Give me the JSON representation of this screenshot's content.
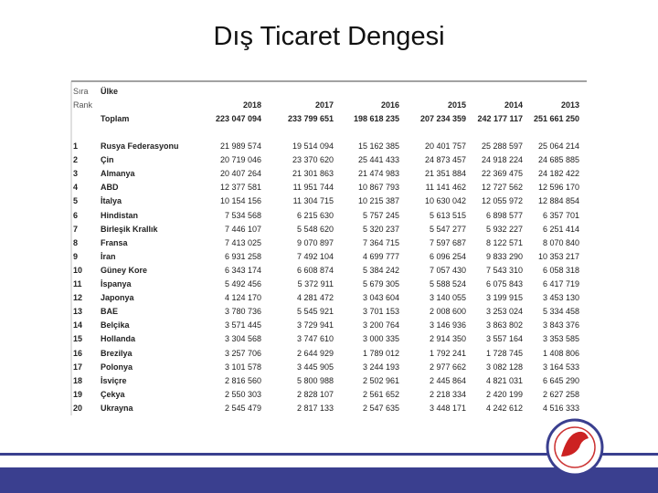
{
  "title": "Dış Ticaret Dengesi",
  "table": {
    "header": {
      "rank_tr": "Sıra",
      "rank_en": "Rank",
      "country": "Ülke",
      "years": [
        2018,
        2017,
        2016,
        2015,
        2014,
        2013
      ]
    },
    "total": {
      "label": "Toplam",
      "values": [
        "223 047 094",
        "233 799 651",
        "198 618 235",
        "207 234 359",
        "242 177 117",
        "251 661 250"
      ]
    },
    "rows": [
      [
        1,
        "Rusya Federasyonu",
        "21 989 574",
        "19 514 094",
        "15 162 385",
        "20 401 757",
        "25 288 597",
        "25 064 214"
      ],
      [
        2,
        "Çin",
        "20 719 046",
        "23 370 620",
        "25 441 433",
        "24 873 457",
        "24 918 224",
        "24 685 885"
      ],
      [
        3,
        "Almanya",
        "20 407 264",
        "21 301 863",
        "21 474 983",
        "21 351 884",
        "22 369 475",
        "24 182 422"
      ],
      [
        4,
        "ABD",
        "12 377 581",
        "11 951 744",
        "10 867 793",
        "11 141 462",
        "12 727 562",
        "12 596 170"
      ],
      [
        5,
        "İtalya",
        "10 154 156",
        "11 304 715",
        "10 215 387",
        "10 630 042",
        "12 055 972",
        "12 884 854"
      ],
      [
        6,
        "Hindistan",
        "7 534 568",
        "6 215 630",
        "5 757 245",
        "5 613 515",
        "6 898 577",
        "6 357 701"
      ],
      [
        7,
        "Birleşik Krallık",
        "7 446 107",
        "5 548 620",
        "5 320 237",
        "5 547 277",
        "5 932 227",
        "6 251 414"
      ],
      [
        8,
        "Fransa",
        "7 413 025",
        "9 070 897",
        "7 364 715",
        "7 597 687",
        "8 122 571",
        "8 070 840"
      ],
      [
        9,
        "İran",
        "6 931 258",
        "7 492 104",
        "4 699 777",
        "6 096 254",
        "9 833 290",
        "10 353 217"
      ],
      [
        10,
        "Güney Kore",
        "6 343 174",
        "6 608 874",
        "5 384 242",
        "7 057 430",
        "7 543 310",
        "6 058 318"
      ],
      [
        11,
        "İspanya",
        "5 492 456",
        "5 372 911",
        "5 679 305",
        "5 588 524",
        "6 075 843",
        "6 417 719"
      ],
      [
        12,
        "Japonya",
        "4 124 170",
        "4 281 472",
        "3 043 604",
        "3 140 055",
        "3 199 915",
        "3 453 130"
      ],
      [
        13,
        "BAE",
        "3 780 736",
        "5 545 921",
        "3 701 153",
        "2 008 600",
        "3 253 024",
        "5 334 458"
      ],
      [
        14,
        "Belçika",
        "3 571 445",
        "3 729 941",
        "3 200 764",
        "3 146 936",
        "3 863 802",
        "3 843 376"
      ],
      [
        15,
        "Hollanda",
        "3 304 568",
        "3 747 610",
        "3 000 335",
        "2 914 350",
        "3 557 164",
        "3 353 585"
      ],
      [
        16,
        "Brezilya",
        "3 257 706",
        "2 644 929",
        "1 789 012",
        "1 792 241",
        "1 728 745",
        "1 408 806"
      ],
      [
        17,
        "Polonya",
        "3 101 578",
        "3 445 905",
        "3 244 193",
        "2 977 662",
        "3 082 128",
        "3 164 533"
      ],
      [
        18,
        "İsviçre",
        "2 816 560",
        "5 800 988",
        "2 502 961",
        "2 445 864",
        "4 821 031",
        "6 645 290"
      ],
      [
        19,
        "Çekya",
        "2 550 303",
        "2 828 107",
        "2 561 652",
        "2 218 334",
        "2 420 199",
        "2 627 258"
      ],
      [
        20,
        "Ukrayna",
        "2 545 479",
        "2 817 133",
        "2 547 635",
        "3 448 171",
        "4 242 612",
        "4 516 333"
      ]
    ]
  }
}
